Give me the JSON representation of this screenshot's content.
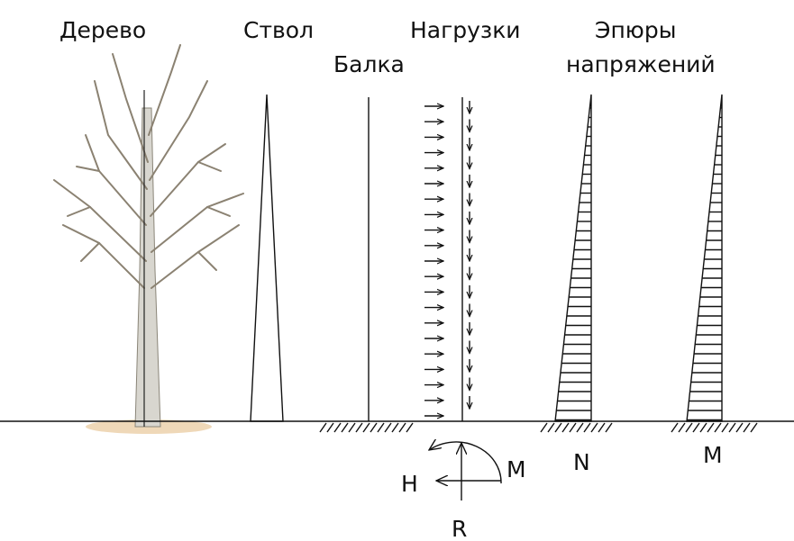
{
  "labels": {
    "tree": "Дерево",
    "trunk": "Ствол",
    "beam": "Балка",
    "loads": "Нагрузки",
    "diagrams_line1": "Эпюры",
    "diagrams_line2": "напряжений",
    "diagram_n": "N",
    "diagram_m": "M",
    "reaction_h": "H",
    "reaction_m": "M",
    "reaction_r": "R"
  }
}
